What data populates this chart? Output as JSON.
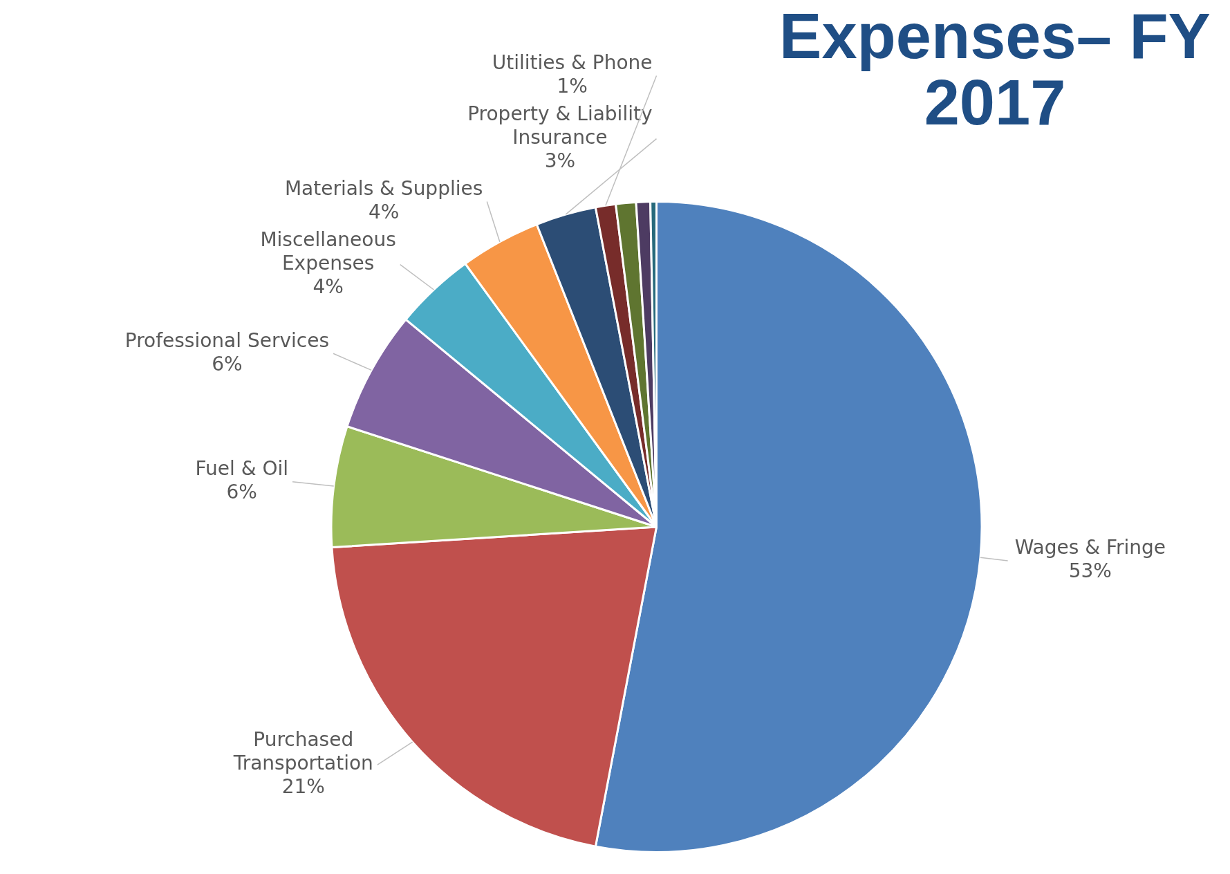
{
  "chart_data": {
    "type": "pie",
    "title": "Expenses– FY 2017",
    "categories": [
      "Wages & Fringe",
      "Purchased Transportation",
      "Fuel & Oil",
      "Professional Services",
      "Miscellaneous Expenses",
      "Materials & Supplies",
      "Property & Liability Insurance",
      "Utilities & Phone",
      null,
      null,
      null
    ],
    "values": [
      53,
      21,
      6,
      6,
      4,
      4,
      3,
      1,
      1,
      0.7,
      0.3
    ],
    "value_labels": [
      "53%",
      "21%",
      "6%",
      "6%",
      "4%",
      "4%",
      "3%",
      "1%",
      null,
      null,
      null
    ],
    "colors": [
      "#4f81bd",
      "#c0504d",
      "#9bbb59",
      "#8064a2",
      "#4bacc6",
      "#f79646",
      "#2c4d75",
      "#772c2a",
      "#5f7530",
      "#4d3b62",
      "#276a7c"
    ],
    "legend": false
  }
}
